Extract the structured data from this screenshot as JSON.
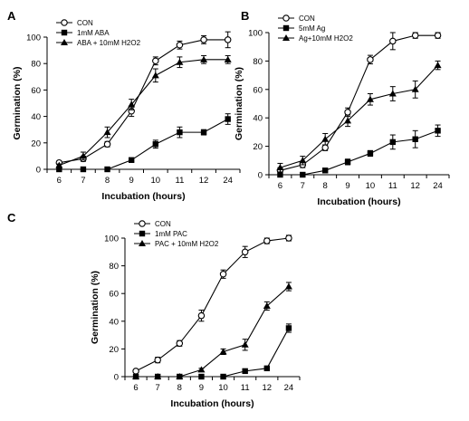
{
  "chart_data": [
    {
      "type": "line",
      "panel_label": "A",
      "xlabel": "Incubation (hours)",
      "ylabel": "Germination (%)",
      "categories": [
        "6",
        "7",
        "8",
        "9",
        "10",
        "11",
        "12",
        "24"
      ],
      "ylim": [
        0,
        100
      ],
      "yticks": [
        0,
        20,
        40,
        60,
        80,
        100
      ],
      "legend_position": "top-left",
      "series": [
        {
          "name": "CON",
          "marker": "open-circle",
          "values": [
            5,
            8,
            19,
            44,
            82,
            94,
            98,
            98
          ],
          "errors": [
            1,
            2,
            2,
            4,
            3,
            3,
            3,
            6
          ]
        },
        {
          "name": "1mM ABA",
          "marker": "square",
          "values": [
            0,
            0,
            0,
            7,
            19,
            28,
            28,
            38
          ],
          "errors": [
            0,
            0,
            0,
            1,
            3,
            4,
            2,
            4
          ]
        },
        {
          "name": "ABA + 10mM H2O2",
          "marker": "triangle",
          "values": [
            3,
            10,
            28,
            49,
            71,
            81,
            83,
            83
          ],
          "errors": [
            1,
            3,
            4,
            4,
            5,
            4,
            3,
            3
          ]
        }
      ]
    },
    {
      "type": "line",
      "panel_label": "B",
      "xlabel": "Incubation (hours)",
      "ylabel": "Germination (%)",
      "categories": [
        "6",
        "7",
        "8",
        "9",
        "10",
        "11",
        "12",
        "24"
      ],
      "ylim": [
        0,
        100
      ],
      "yticks": [
        0,
        20,
        40,
        60,
        80,
        100
      ],
      "legend_position": "top-left",
      "series": [
        {
          "name": "CON",
          "marker": "open-circle",
          "values": [
            3,
            7,
            19,
            44,
            81,
            94,
            98,
            98
          ],
          "errors": [
            2,
            2,
            2,
            3,
            3,
            6,
            2,
            2
          ]
        },
        {
          "name": "5mM Ag",
          "marker": "square",
          "values": [
            0,
            0,
            3,
            9,
            15,
            23,
            25,
            31
          ],
          "errors": [
            0,
            0,
            1,
            2,
            2,
            5,
            6,
            4
          ]
        },
        {
          "name": "Ag+10mM H2O2",
          "marker": "triangle",
          "values": [
            5,
            10,
            25,
            38,
            53,
            57,
            60,
            77
          ],
          "errors": [
            3,
            3,
            4,
            4,
            4,
            5,
            6,
            3
          ]
        }
      ]
    },
    {
      "type": "line",
      "panel_label": "C",
      "xlabel": "Incubation (hours)",
      "ylabel": "Germination (%)",
      "categories": [
        "6",
        "7",
        "8",
        "9",
        "10",
        "11",
        "12",
        "24"
      ],
      "ylim": [
        0,
        100
      ],
      "yticks": [
        0,
        20,
        40,
        60,
        80,
        100
      ],
      "legend_position": "top-left",
      "series": [
        {
          "name": "CON",
          "marker": "open-circle",
          "values": [
            4,
            12,
            24,
            44,
            74,
            90,
            98,
            100
          ],
          "errors": [
            1,
            2,
            2,
            4,
            3,
            4,
            2,
            2
          ]
        },
        {
          "name": "1mM PAC",
          "marker": "square",
          "values": [
            0,
            0,
            0,
            0,
            0,
            4,
            6,
            35
          ],
          "errors": [
            0,
            0,
            0,
            0,
            0,
            0,
            0,
            3
          ]
        },
        {
          "name": "PAC + 10mM H2O2",
          "marker": "triangle",
          "values": [
            0,
            0,
            0,
            5,
            18,
            23,
            51,
            65
          ],
          "errors": [
            0,
            0,
            0,
            1,
            2,
            4,
            3,
            3
          ]
        }
      ]
    }
  ]
}
